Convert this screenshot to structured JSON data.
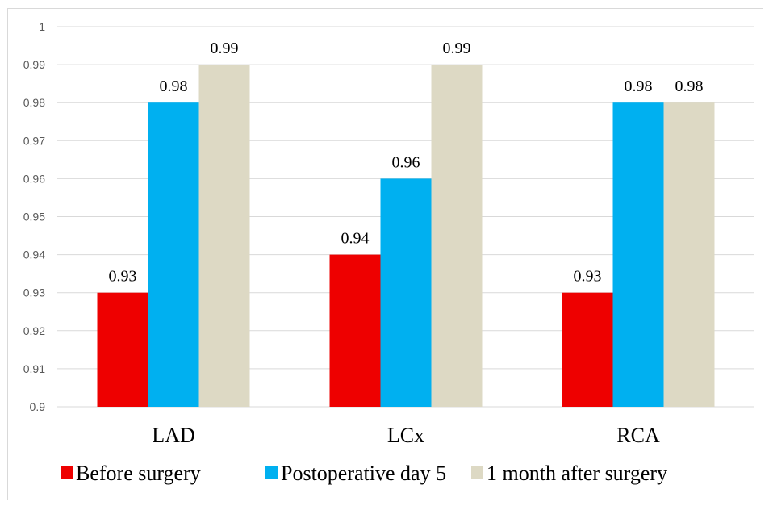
{
  "chart_data": {
    "type": "bar",
    "title": "",
    "xlabel": "",
    "ylabel": "",
    "categories": [
      "LAD",
      "LCx",
      "RCA"
    ],
    "series": [
      {
        "name": "Before surgery",
        "color": "#ee0000",
        "values": [
          0.93,
          0.94,
          0.93
        ]
      },
      {
        "name": "Postoperative day 5",
        "color": "#00b0f0",
        "values": [
          0.98,
          0.96,
          0.98
        ]
      },
      {
        "name": "1 month after surgery",
        "color": "#ddd9c4",
        "values": [
          0.99,
          0.99,
          0.98
        ]
      }
    ],
    "ylim": [
      0.9,
      1
    ],
    "yticks": [
      "0.9",
      "0.91",
      "0.92",
      "0.93",
      "0.94",
      "0.95",
      "0.96",
      "0.97",
      "0.98",
      "0.99",
      "1"
    ],
    "grid": true,
    "legend": "bottom",
    "data_labels": true
  }
}
